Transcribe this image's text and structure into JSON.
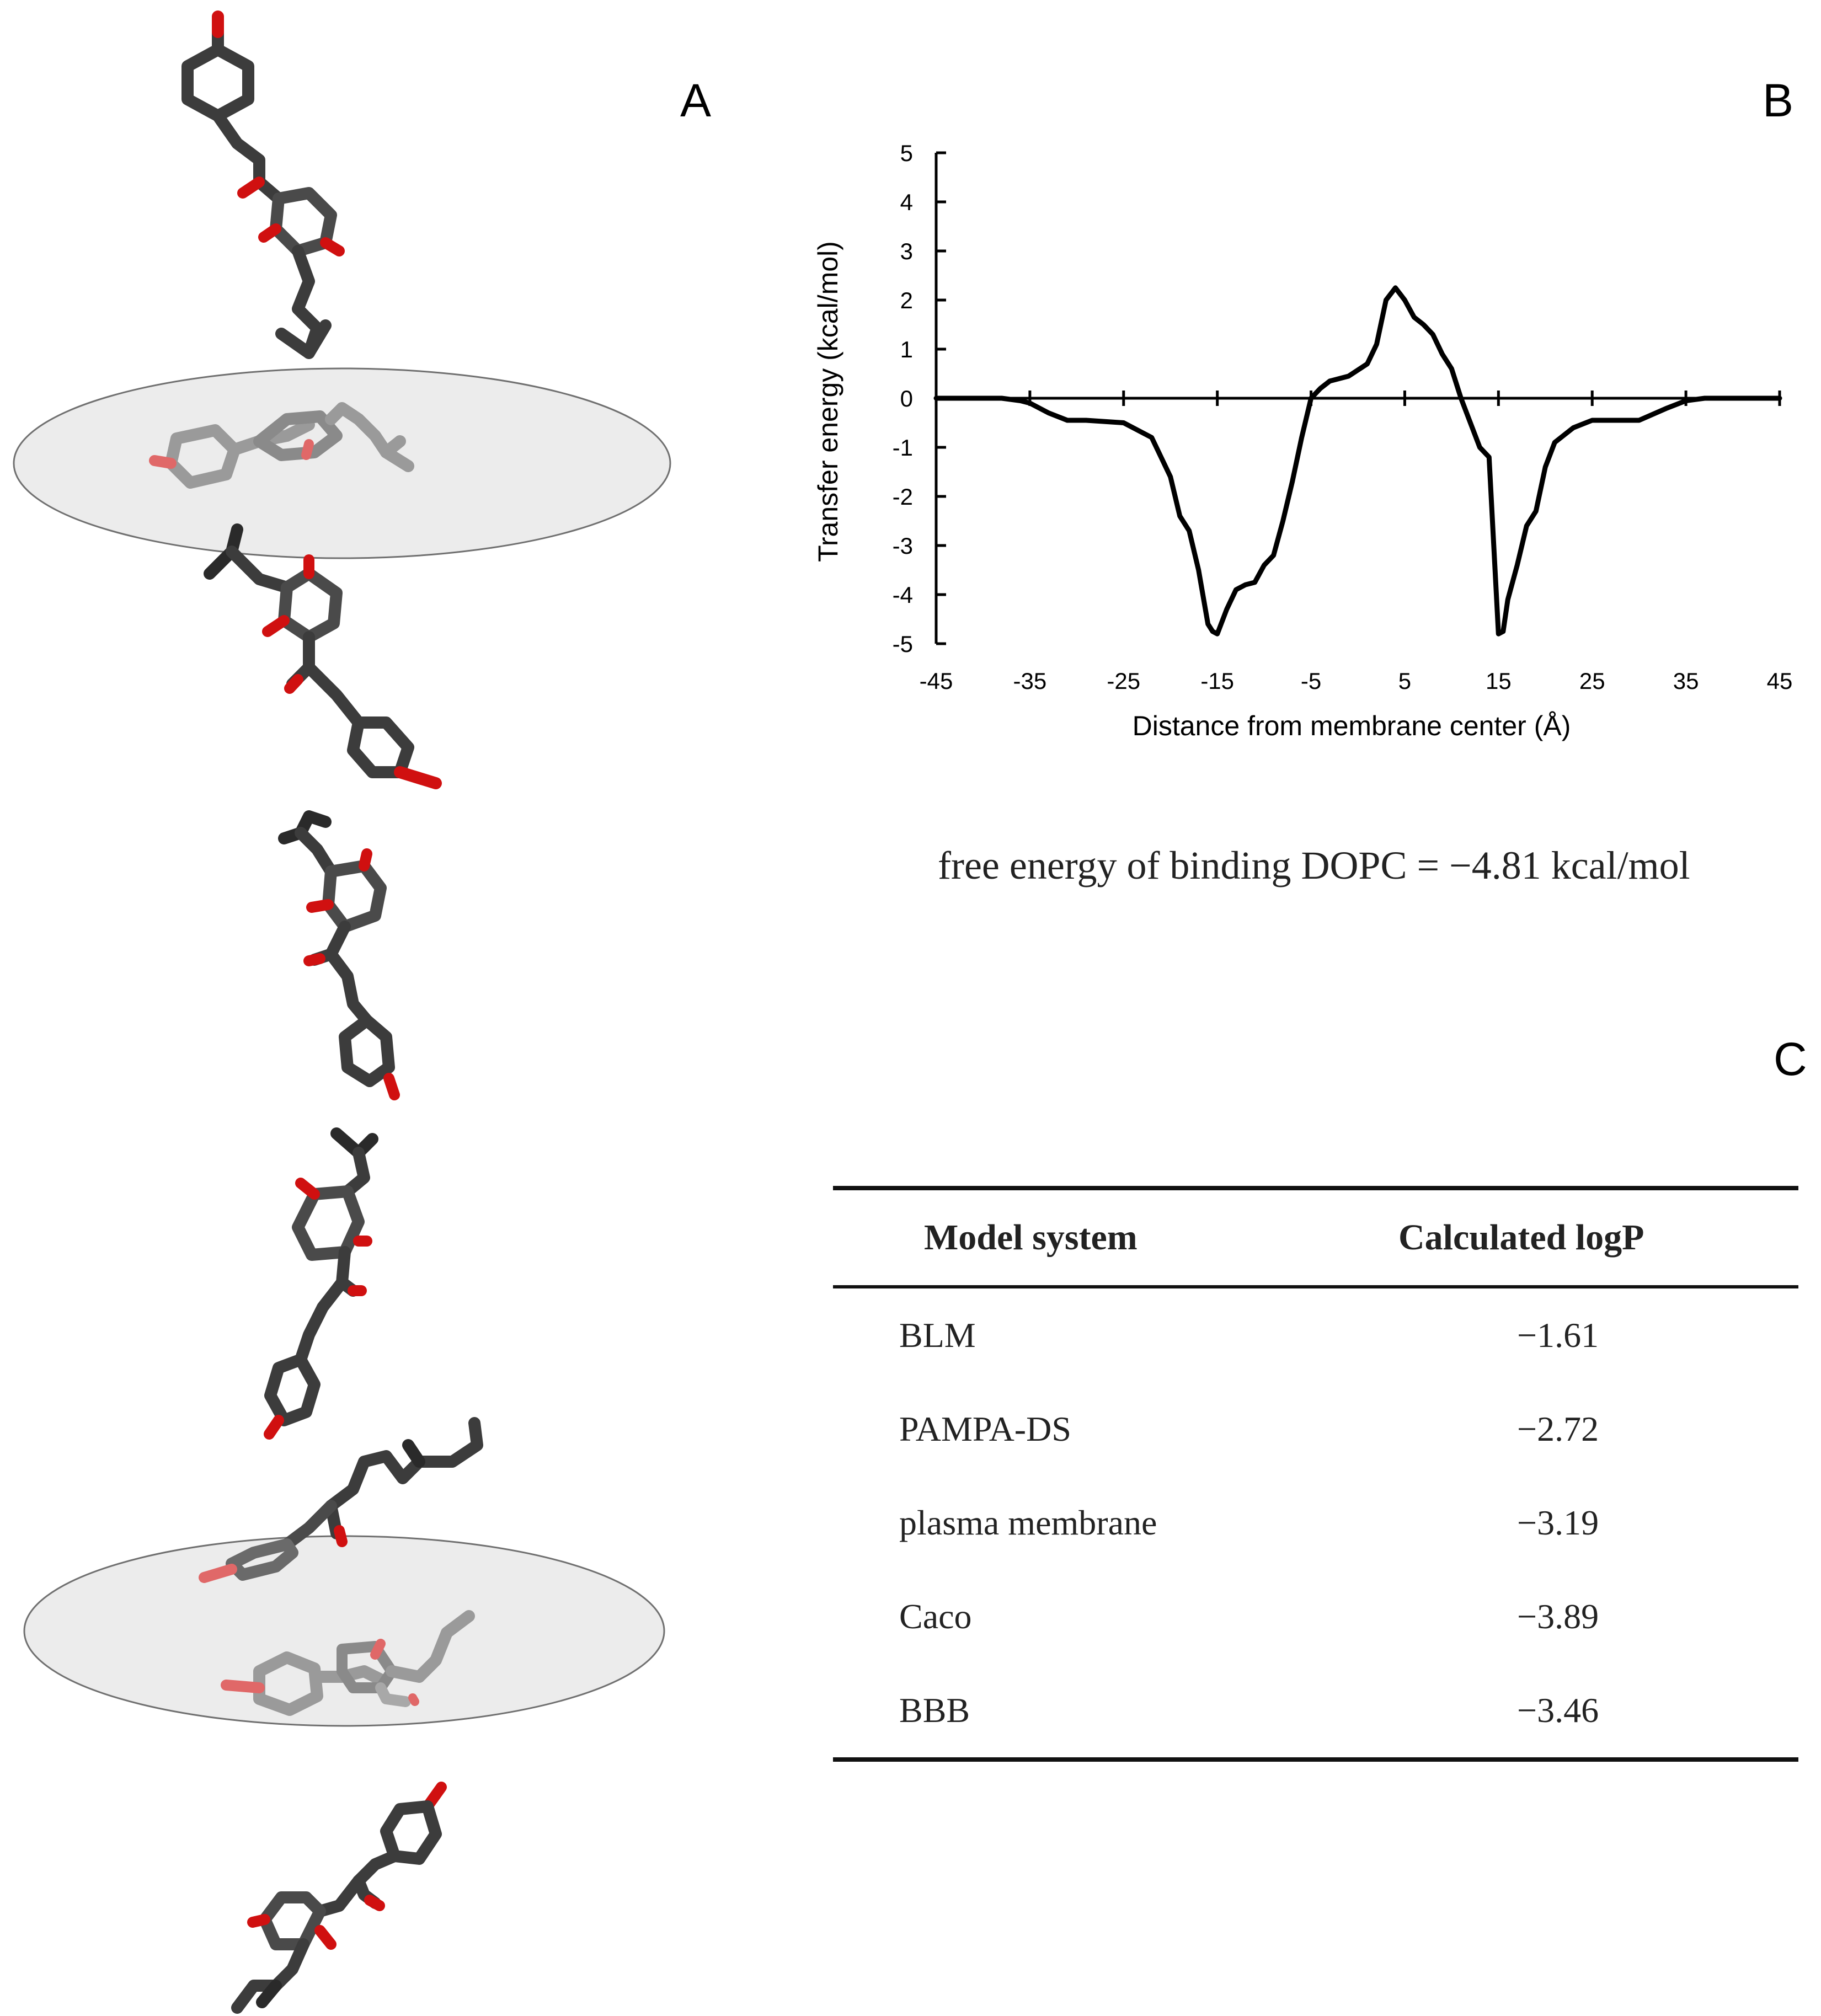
{
  "panels": {
    "a": "A",
    "b": "B",
    "c": "C"
  },
  "chart_data": {
    "type": "line",
    "xlabel": "Distance from membrane center (Å)",
    "ylabel": "Transfer energy (kcal/mol)",
    "xlim": [
      -45,
      45
    ],
    "ylim": [
      -5,
      5
    ],
    "xticks": [
      -45,
      -35,
      -25,
      -15,
      -5,
      5,
      15,
      25,
      35,
      45
    ],
    "yticks": [
      5,
      4,
      3,
      2,
      1,
      0,
      -1,
      -2,
      -3,
      -4,
      -5
    ],
    "series": [
      {
        "name": "transfer energy",
        "x": [
          -45,
          -38,
          -36,
          -35,
          -33,
          -31,
          -29,
          -25,
          -22,
          -20,
          -19,
          -18,
          -17,
          -16,
          -15.5,
          -15,
          -14,
          -13,
          -12,
          -11,
          -10,
          -9,
          -8,
          -7,
          -6,
          -5,
          -4,
          -3,
          -1,
          1,
          2,
          3,
          4,
          5,
          6,
          7,
          8,
          9,
          10,
          11,
          12,
          13,
          14,
          14.5,
          15,
          15.5,
          16,
          17,
          18,
          19,
          20,
          21,
          23,
          25,
          27,
          30,
          33,
          35,
          37,
          39,
          41,
          45
        ],
        "y": [
          0,
          0,
          -0.05,
          -0.1,
          -0.3,
          -0.45,
          -0.45,
          -0.5,
          -0.8,
          -1.6,
          -2.4,
          -2.7,
          -3.5,
          -4.6,
          -4.75,
          -4.8,
          -4.3,
          -3.9,
          -3.8,
          -3.75,
          -3.4,
          -3.2,
          -2.5,
          -1.7,
          -0.8,
          0,
          0.2,
          0.35,
          0.45,
          0.7,
          1.1,
          2.0,
          2.25,
          2.0,
          1.65,
          1.5,
          1.3,
          0.9,
          0.6,
          0,
          -0.5,
          -1.0,
          -1.2,
          -3.0,
          -4.8,
          -4.75,
          -4.1,
          -3.4,
          -2.6,
          -2.3,
          -1.4,
          -0.9,
          -0.6,
          -0.45,
          -0.45,
          -0.45,
          -0.2,
          -0.05,
          0,
          0,
          0,
          0
        ]
      }
    ],
    "annotations": [
      "free energy of binding DOPC = -4.81 kcal/mol"
    ]
  },
  "binding_note": "free energy of binding DOPC = −4.81 kcal/mol",
  "table": {
    "headers": {
      "model": "Model system",
      "logp": "Calculated logP"
    },
    "rows": [
      {
        "model": "BLM",
        "logp": "−1.61"
      },
      {
        "model": "PAMPA-DS",
        "logp": "−2.72"
      },
      {
        "model": "plasma membrane",
        "logp": "−3.19"
      },
      {
        "model": "Caco",
        "logp": "−3.89"
      },
      {
        "model": "BBB",
        "logp": "−3.46"
      }
    ]
  },
  "colors": {
    "bond_dark": "#3c3c3c",
    "bond_mid": "#5a5a5a",
    "bond_light": "#9a9a9a",
    "oxygen": "#d01010",
    "oxygen_light": "#e06868",
    "membrane_fill": "#ececec",
    "membrane_stroke": "#707070",
    "curve": "#000000"
  }
}
